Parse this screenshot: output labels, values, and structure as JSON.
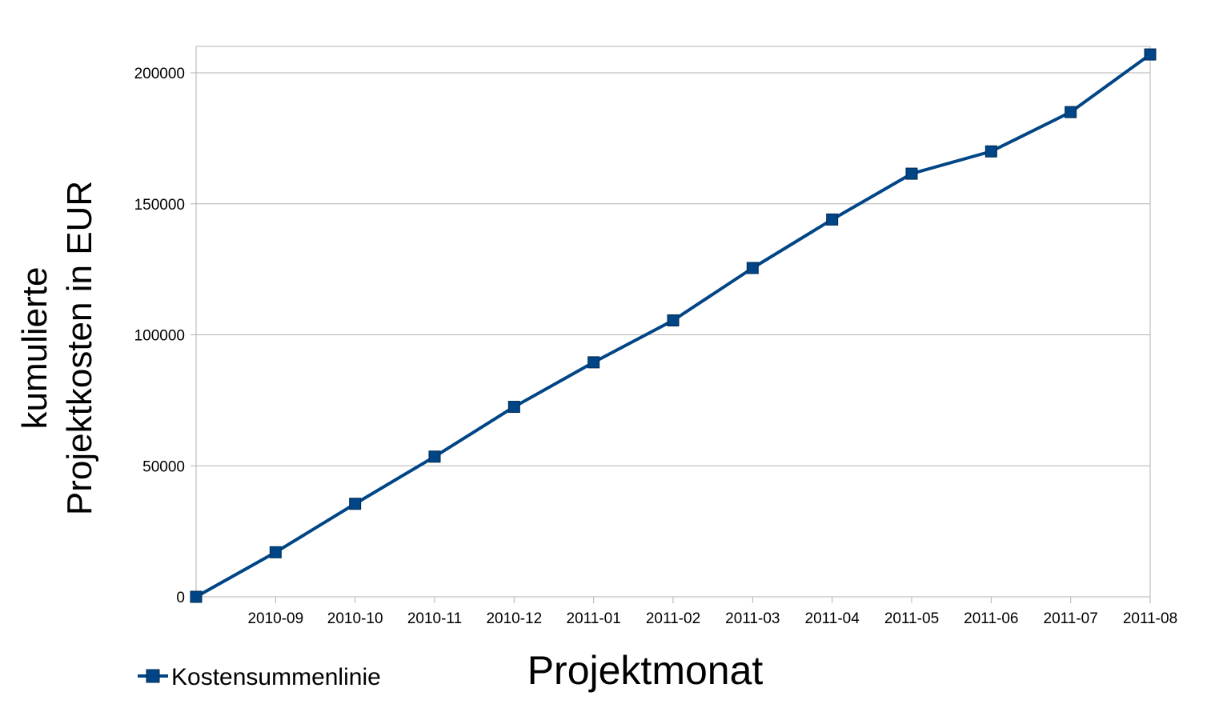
{
  "chart_data": {
    "type": "line",
    "title": "",
    "xlabel": "Projektmonat",
    "ylabel_lines": [
      "kumulierte",
      "Projektkosten in EUR"
    ],
    "categories": [
      "",
      "2010-09",
      "2010-10",
      "2010-11",
      "2010-12",
      "2011-01",
      "2011-02",
      "2011-03",
      "2011-04",
      "2011-05",
      "2011-06",
      "2011-07",
      "2011-08"
    ],
    "series": [
      {
        "name": "Kostensummenlinie",
        "color": "#004586",
        "marker": "square",
        "values": [
          0,
          17000,
          35500,
          53500,
          72500,
          89500,
          105500,
          125500,
          144000,
          161500,
          170000,
          185000,
          207000
        ]
      }
    ],
    "ylim": [
      0,
      210000
    ],
    "yticks": [
      0,
      50000,
      100000,
      150000,
      200000
    ],
    "grid": "horizontal",
    "legend_position": "bottom-left"
  }
}
